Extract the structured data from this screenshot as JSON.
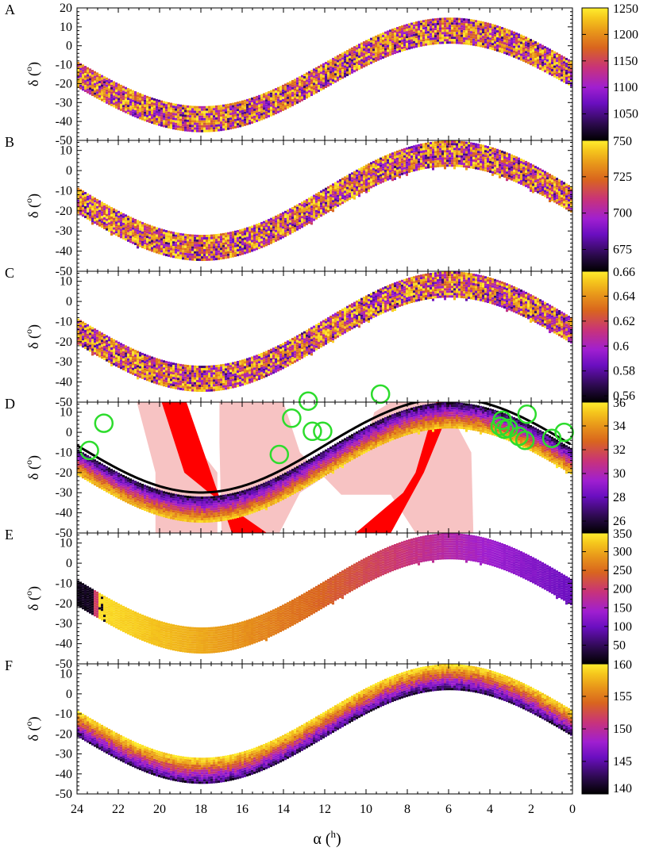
{
  "x_axis": {
    "label_prefix": "α (",
    "label_sup": "h",
    "label_suffix": ")",
    "range": [
      24,
      0
    ],
    "ticks": [
      "24",
      "22",
      "20",
      "18",
      "16",
      "14",
      "12",
      "10",
      "8",
      "6",
      "4",
      "2",
      "0"
    ]
  },
  "y_axis": {
    "label_prefix": "δ (",
    "label_sup": "o",
    "label_suffix": ")",
    "range": [
      -50,
      20
    ]
  },
  "colors": {
    "frame": "#000000",
    "pink_region": "#f7c3c3",
    "red_band": "#ff0000",
    "ecliptic_line": "#000000",
    "circles": "#2ddc2d",
    "palette": [
      "#000000",
      "#2a0a4a",
      "#6a0ec0",
      "#a01fd0",
      "#c8337a",
      "#d9651e",
      "#e8961a",
      "#f5c51c",
      "#ffee2e"
    ]
  },
  "chart_data": [
    {
      "panel": "A",
      "type": "heatmap",
      "ylim": [
        -50,
        20
      ],
      "y_ticks": [
        "20",
        "10",
        "0",
        "-10",
        "-20",
        "-30",
        "-40",
        "-50"
      ],
      "pattern": "noise",
      "band": {
        "center_ra": 6,
        "amplitude_deg": 23.4,
        "half_width_deg": 6.5
      },
      "colorbar": {
        "min": 1000,
        "max": 1250,
        "ticks": [
          "1250",
          "1200",
          "1150",
          "1100",
          "1050"
        ],
        "tick_values": [
          1250,
          1200,
          1150,
          1100,
          1050
        ]
      }
    },
    {
      "panel": "B",
      "type": "heatmap",
      "ylim": [
        -50,
        15
      ],
      "y_ticks": [
        "10",
        "0",
        "-10",
        "-20",
        "-30",
        "-40",
        "-50"
      ],
      "pattern": "noise",
      "band": {
        "center_ra": 6,
        "amplitude_deg": 23.4,
        "half_width_deg": 6.5
      },
      "colorbar": {
        "min": 660,
        "max": 750,
        "ticks": [
          "750",
          "725",
          "700",
          "675"
        ],
        "tick_values": [
          750,
          725,
          700,
          675
        ]
      }
    },
    {
      "panel": "C",
      "type": "heatmap",
      "ylim": [
        -50,
        15
      ],
      "y_ticks": [
        "10",
        "0",
        "-10",
        "-20",
        "-30",
        "-40",
        "-50"
      ],
      "pattern": "noise",
      "band": {
        "center_ra": 6,
        "amplitude_deg": 23.4,
        "half_width_deg": 6.5
      },
      "colorbar": {
        "min": 0.555,
        "max": 0.66,
        "ticks": [
          "0.66",
          "0.64",
          "0.62",
          "0.6",
          "0.58",
          "0.56"
        ],
        "tick_values": [
          0.66,
          0.64,
          0.62,
          0.6,
          0.58,
          0.56
        ]
      }
    },
    {
      "panel": "D",
      "type": "heatmap",
      "ylim": [
        -50,
        15
      ],
      "y_ticks": [
        "10",
        "0",
        "-10",
        "-20",
        "-30",
        "-40",
        "-50"
      ],
      "pattern": "gradient_across_band",
      "band": {
        "center_ra": 6,
        "amplitude_deg": 23.4,
        "half_width_deg": 6.5
      },
      "colorbar": {
        "min": 25,
        "max": 36,
        "ticks": [
          "36",
          "34",
          "32",
          "30",
          "28",
          "26"
        ],
        "tick_values": [
          36,
          34,
          32,
          30,
          28,
          26
        ]
      },
      "ecliptic_offset_deg": 8.5,
      "circles_ra_dec": [
        [
          23.4,
          -9
        ],
        [
          22.7,
          4.5
        ],
        [
          14.2,
          -11
        ],
        [
          13.6,
          7
        ],
        [
          12.8,
          15.5
        ],
        [
          12.6,
          0.5
        ],
        [
          12.1,
          0.5
        ],
        [
          9.3,
          19
        ],
        [
          3.4,
          6
        ],
        [
          3.3,
          1.5
        ],
        [
          3.5,
          3
        ],
        [
          3.1,
          2
        ],
        [
          2.2,
          9
        ],
        [
          2.6,
          -2
        ],
        [
          2.3,
          -4
        ],
        [
          1.0,
          -3
        ],
        [
          0.4,
          0
        ]
      ],
      "pink_regions_ra_dec": [
        [
          [
            21.1,
            15
          ],
          [
            19.9,
            15
          ],
          [
            17.2,
            -20
          ],
          [
            17.2,
            -50
          ],
          [
            20.2,
            -50
          ],
          [
            20.2,
            -20
          ]
        ],
        [
          [
            17.1,
            15
          ],
          [
            14.0,
            15
          ],
          [
            13.2,
            -10
          ],
          [
            11.2,
            -31
          ],
          [
            8.8,
            -31
          ],
          [
            7.6,
            -50
          ],
          [
            4.8,
            -50
          ],
          [
            4.9,
            -10
          ],
          [
            6.2,
            15
          ],
          [
            8.8,
            15
          ],
          [
            9.6,
            10
          ],
          [
            10.2,
            -10
          ],
          [
            13.2,
            -30
          ],
          [
            14.2,
            -50
          ],
          [
            17.0,
            -50
          ],
          [
            17.1,
            -5
          ]
        ]
      ],
      "red_bands_ra_dec": [
        [
          [
            19.9,
            15
          ],
          [
            18.7,
            15
          ],
          [
            16.5,
            -50
          ],
          [
            14.8,
            -50
          ],
          [
            17.6,
            -30
          ],
          [
            18.8,
            -20
          ]
        ],
        [
          [
            6.6,
            15
          ],
          [
            5.8,
            15
          ],
          [
            7.2,
            -20
          ],
          [
            8.8,
            -50
          ],
          [
            10.5,
            -50
          ],
          [
            8.2,
            -30
          ],
          [
            7.6,
            -20
          ]
        ]
      ]
    },
    {
      "panel": "E",
      "type": "heatmap",
      "ylim": [
        -50,
        15
      ],
      "y_ticks": [
        "10",
        "0",
        "-10",
        "-20",
        "-30",
        "-40",
        "-50"
      ],
      "pattern": "gradient_along_ra",
      "band": {
        "center_ra": 6,
        "amplitude_deg": 23.4,
        "half_width_deg": 6.5
      },
      "colorbar": {
        "min": 0,
        "max": 350,
        "ticks": [
          "350",
          "300",
          "250",
          "200",
          "150",
          "100",
          "50"
        ],
        "tick_values": [
          350,
          300,
          250,
          200,
          150,
          100,
          50
        ]
      },
      "wrap_ra": 23
    },
    {
      "panel": "F",
      "type": "heatmap",
      "ylim": [
        -50,
        15
      ],
      "y_ticks": [
        "10",
        "0",
        "-10",
        "-20",
        "-30",
        "-40",
        "-50"
      ],
      "pattern": "gradient_across_band_inverse",
      "band": {
        "center_ra": 6,
        "amplitude_deg": 23.4,
        "half_width_deg": 6.5
      },
      "colorbar": {
        "min": 140,
        "max": 160,
        "ticks": [
          "160",
          "155",
          "150",
          "145",
          "140"
        ],
        "tick_values": [
          160,
          155,
          150,
          145,
          140
        ]
      }
    }
  ]
}
